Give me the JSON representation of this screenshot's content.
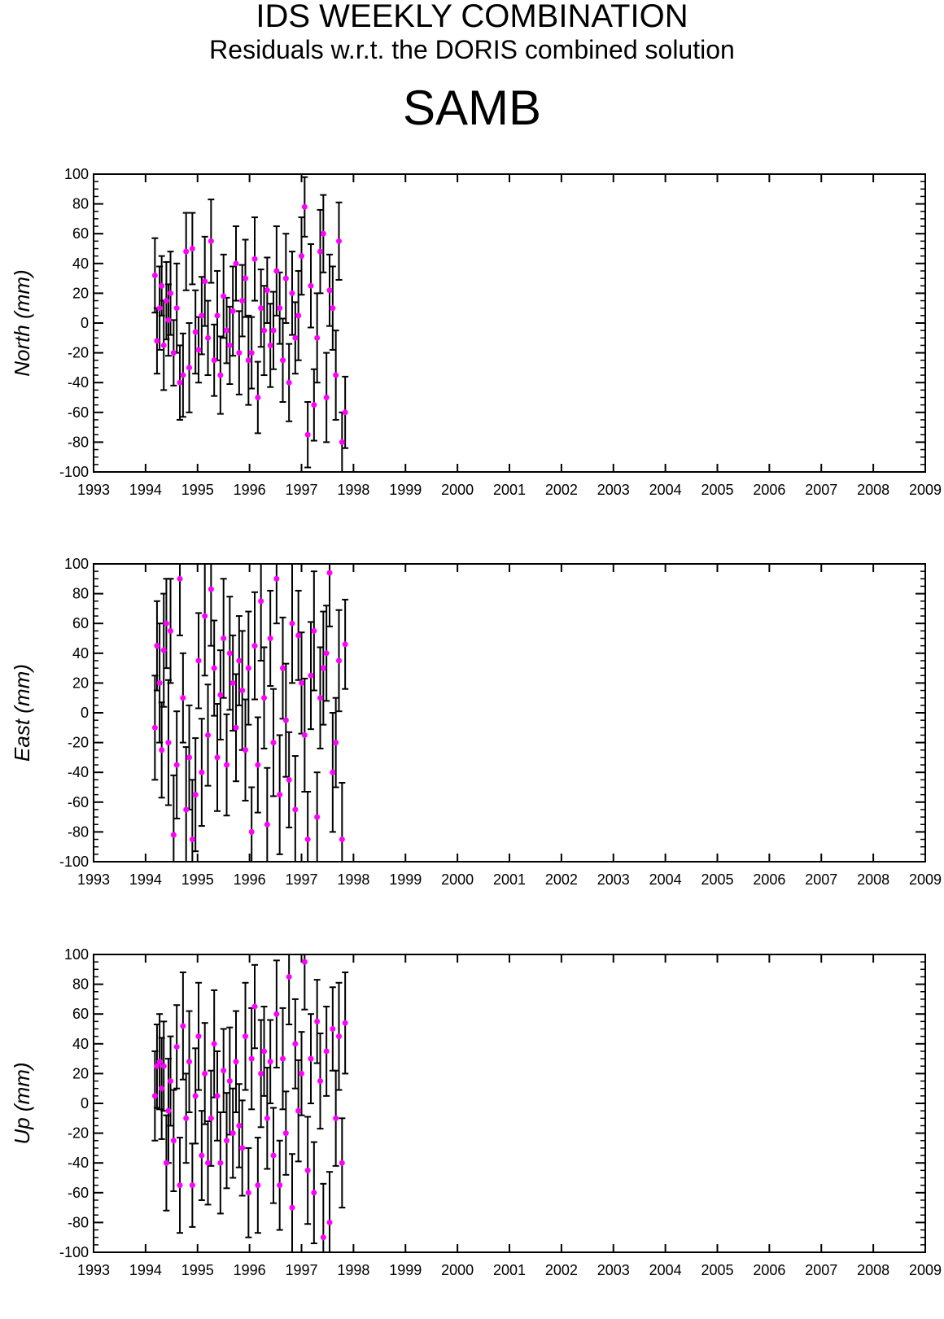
{
  "title": "IDS WEEKLY COMBINATION",
  "subtitle": "Residuals w.r.t. the DORIS combined solution",
  "station": "SAMB",
  "colors": {
    "point": "#ff00ff",
    "errorbar": "#000000",
    "axis": "#000000"
  },
  "chart_data": [
    {
      "type": "scatter",
      "ylabel": "North (mm)",
      "xlim": [
        1993,
        2009
      ],
      "ylim": [
        -100,
        100
      ],
      "xticks": [
        "1993",
        "1994",
        "1995",
        "1996",
        "1997",
        "1998",
        "1999",
        "2000",
        "2001",
        "2002",
        "2003",
        "2004",
        "2005",
        "2006",
        "2007",
        "2008",
        "2009"
      ],
      "yticks": [
        "100",
        "80",
        "60",
        "40",
        "20",
        "0",
        "-20",
        "-40",
        "-60",
        "-80",
        "-100"
      ],
      "grid": false,
      "x": [
        1994.18,
        1994.22,
        1994.27,
        1994.31,
        1994.35,
        1994.4,
        1994.44,
        1994.48,
        1994.54,
        1994.6,
        1994.66,
        1994.72,
        1994.78,
        1994.84,
        1994.9,
        1994.96,
        1995.02,
        1995.08,
        1995.14,
        1995.2,
        1995.26,
        1995.32,
        1995.38,
        1995.44,
        1995.5,
        1995.56,
        1995.62,
        1995.68,
        1995.74,
        1995.8,
        1995.86,
        1995.92,
        1995.98,
        1996.04,
        1996.1,
        1996.16,
        1996.22,
        1996.28,
        1996.34,
        1996.4,
        1996.46,
        1996.52,
        1996.58,
        1996.64,
        1996.7,
        1996.76,
        1996.82,
        1996.88,
        1996.94,
        1997.0,
        1997.06,
        1997.12,
        1997.18,
        1997.24,
        1997.3,
        1997.36,
        1997.42,
        1997.48,
        1997.54,
        1997.6,
        1997.66,
        1997.72,
        1997.78,
        1997.84
      ],
      "values": [
        32,
        -12,
        10,
        25,
        -15,
        15,
        2,
        20,
        -20,
        10,
        -40,
        -35,
        48,
        -30,
        50,
        -6,
        -18,
        5,
        28,
        -10,
        55,
        -25,
        5,
        -35,
        18,
        -5,
        -15,
        8,
        40,
        -20,
        15,
        30,
        -25,
        -20,
        43,
        -50,
        10,
        -5,
        22,
        -15,
        -5,
        35,
        10,
        -25,
        30,
        -40,
        20,
        -10,
        5,
        45,
        78,
        -75,
        25,
        -55,
        -10,
        48,
        60,
        -50,
        22,
        10,
        -35,
        55,
        -80,
        -60
      ],
      "err": [
        25,
        22,
        28,
        20,
        30,
        26,
        24,
        28,
        22,
        30,
        25,
        28,
        26,
        30,
        24,
        28,
        22,
        26,
        30,
        25,
        28,
        24,
        30,
        26,
        28,
        22,
        26,
        30,
        25,
        28,
        24,
        26,
        30,
        24,
        28,
        24,
        26,
        30,
        22,
        28,
        26,
        30,
        24,
        28,
        30,
        26,
        28,
        24,
        30,
        26,
        20,
        22,
        28,
        24,
        30,
        28,
        26,
        30,
        24,
        28,
        30,
        26,
        20,
        24
      ]
    },
    {
      "type": "scatter",
      "ylabel": "East (mm)",
      "xlim": [
        1993,
        2009
      ],
      "ylim": [
        -100,
        100
      ],
      "xticks": [
        "1993",
        "1994",
        "1995",
        "1996",
        "1997",
        "1998",
        "1999",
        "2000",
        "2001",
        "2002",
        "2003",
        "2004",
        "2005",
        "2006",
        "2007",
        "2008",
        "2009"
      ],
      "yticks": [
        "100",
        "80",
        "60",
        "40",
        "20",
        "0",
        "-20",
        "-40",
        "-60",
        "-80",
        "-100"
      ],
      "grid": false,
      "x": [
        1994.18,
        1994.22,
        1994.27,
        1994.31,
        1994.35,
        1994.4,
        1994.44,
        1994.48,
        1994.54,
        1994.6,
        1994.66,
        1994.72,
        1994.78,
        1994.84,
        1994.9,
        1994.96,
        1995.02,
        1995.08,
        1995.14,
        1995.2,
        1995.26,
        1995.32,
        1995.38,
        1995.44,
        1995.5,
        1995.56,
        1995.62,
        1995.68,
        1995.74,
        1995.8,
        1995.86,
        1995.92,
        1995.98,
        1996.04,
        1996.1,
        1996.16,
        1996.22,
        1996.28,
        1996.34,
        1996.4,
        1996.46,
        1996.52,
        1996.58,
        1996.64,
        1996.7,
        1996.76,
        1996.82,
        1996.88,
        1996.94,
        1997.0,
        1997.06,
        1997.12,
        1997.18,
        1997.24,
        1997.3,
        1997.36,
        1997.42,
        1997.48,
        1997.54,
        1997.6,
        1997.66,
        1997.72,
        1997.78,
        1997.84
      ],
      "values": [
        -10,
        45,
        20,
        -25,
        42,
        60,
        -20,
        55,
        -82,
        -35,
        90,
        10,
        -65,
        -30,
        -85,
        -55,
        35,
        -40,
        65,
        -15,
        83,
        30,
        -30,
        12,
        50,
        -35,
        40,
        20,
        -10,
        35,
        15,
        -25,
        30,
        -80,
        45,
        -35,
        75,
        10,
        -75,
        50,
        -20,
        90,
        -55,
        30,
        -5,
        -45,
        60,
        -65,
        52,
        20,
        -15,
        -85,
        25,
        55,
        -70,
        10,
        30,
        40,
        94,
        -40,
        -20,
        35,
        -85,
        46
      ],
      "err": [
        35,
        30,
        40,
        32,
        38,
        30,
        42,
        35,
        40,
        36,
        38,
        30,
        42,
        35,
        40,
        38,
        32,
        36,
        40,
        34,
        38,
        32,
        36,
        30,
        40,
        34,
        38,
        32,
        36,
        30,
        40,
        34,
        38,
        30,
        36,
        32,
        40,
        34,
        38,
        32,
        36,
        30,
        40,
        34,
        38,
        32,
        40,
        36,
        30,
        34,
        38,
        32,
        36,
        40,
        30,
        34,
        38,
        32,
        36,
        40,
        30,
        34,
        38,
        30
      ]
    },
    {
      "type": "scatter",
      "ylabel": "Up (mm)",
      "xlim": [
        1993,
        2009
      ],
      "ylim": [
        -100,
        100
      ],
      "xticks": [
        "1993",
        "1994",
        "1995",
        "1996",
        "1997",
        "1998",
        "1999",
        "2000",
        "2001",
        "2002",
        "2003",
        "2004",
        "2005",
        "2006",
        "2007",
        "2008",
        "2009"
      ],
      "yticks": [
        "100",
        "80",
        "60",
        "40",
        "20",
        "0",
        "-20",
        "-40",
        "-60",
        "-80",
        "-100"
      ],
      "grid": false,
      "x": [
        1994.18,
        1994.22,
        1994.27,
        1994.31,
        1994.35,
        1994.4,
        1994.44,
        1994.48,
        1994.54,
        1994.6,
        1994.66,
        1994.72,
        1994.78,
        1994.84,
        1994.9,
        1994.96,
        1995.02,
        1995.08,
        1995.14,
        1995.2,
        1995.26,
        1995.32,
        1995.38,
        1995.44,
        1995.5,
        1995.56,
        1995.62,
        1995.68,
        1995.74,
        1995.8,
        1995.86,
        1995.92,
        1995.98,
        1996.04,
        1996.1,
        1996.16,
        1996.22,
        1996.28,
        1996.34,
        1996.4,
        1996.46,
        1996.52,
        1996.58,
        1996.64,
        1996.7,
        1996.76,
        1996.82,
        1996.88,
        1996.94,
        1997.0,
        1997.06,
        1997.12,
        1997.18,
        1997.24,
        1997.3,
        1997.36,
        1997.42,
        1997.48,
        1997.54,
        1997.6,
        1997.66,
        1997.72,
        1997.78,
        1997.84
      ],
      "values": [
        5,
        25,
        28,
        10,
        25,
        -40,
        -5,
        15,
        -25,
        38,
        -55,
        52,
        -10,
        28,
        -55,
        5,
        45,
        -35,
        20,
        -40,
        -10,
        40,
        5,
        -40,
        22,
        -25,
        15,
        -20,
        28,
        -15,
        -30,
        45,
        -60,
        30,
        65,
        -55,
        20,
        35,
        -10,
        28,
        -35,
        60,
        -55,
        30,
        -20,
        85,
        -70,
        40,
        -5,
        20,
        95,
        -45,
        30,
        -60,
        55,
        15,
        -90,
        35,
        -80,
        50,
        -10,
        45,
        -40,
        54
      ],
      "err": [
        30,
        28,
        32,
        34,
        30,
        32,
        35,
        30,
        34,
        28,
        32,
        36,
        30,
        34,
        28,
        32,
        36,
        30,
        34,
        28,
        32,
        36,
        30,
        34,
        28,
        32,
        36,
        30,
        34,
        28,
        32,
        36,
        30,
        34,
        28,
        32,
        36,
        30,
        34,
        28,
        32,
        36,
        30,
        34,
        28,
        32,
        36,
        30,
        34,
        28,
        32,
        36,
        30,
        34,
        28,
        32,
        36,
        30,
        34,
        28,
        32,
        36,
        30,
        34
      ]
    }
  ]
}
